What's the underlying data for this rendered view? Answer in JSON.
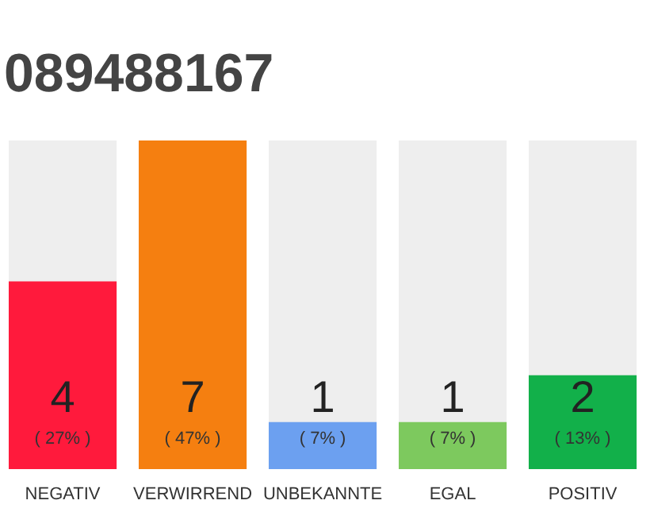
{
  "chart_data": {
    "type": "bar",
    "title": "089488167",
    "categories": [
      "NEGATIV",
      "VERWIRREND",
      "UNBEKANNTE",
      "EGAL",
      "POSITIV"
    ],
    "values": [
      4,
      7,
      1,
      1,
      2
    ],
    "colors": [
      "#ff1a3c",
      "#f57f10",
      "#6ca0f0",
      "#7dc95e",
      "#12b04a"
    ],
    "ylim": [
      0,
      7
    ],
    "data_labels": true,
    "grid": false,
    "annotations": [
      "( 27% )",
      "( 47% )",
      "( 7% )",
      "( 7% )",
      "( 13% )"
    ]
  }
}
